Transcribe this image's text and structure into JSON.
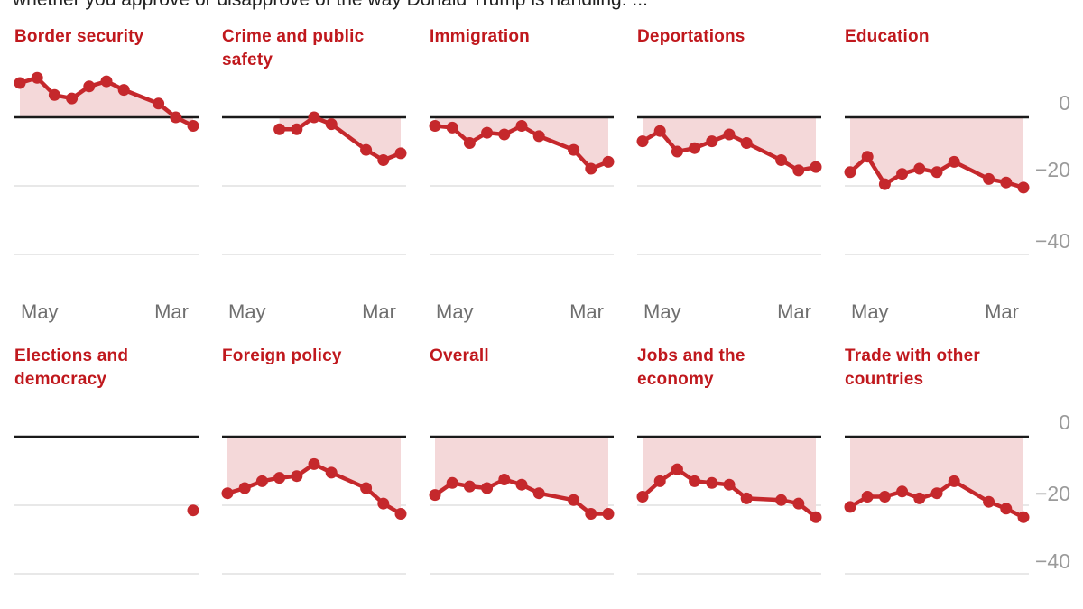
{
  "intro": {
    "text": "whether you approve or disapprove of the way Donald Trump is handling: ..."
  },
  "colors": {
    "title_red": "#c0181d",
    "line_red": "#c5282c",
    "fill_pink": "#f4d8d9",
    "zero_line": "#1a1a1a",
    "gridline": "#e0e0e0",
    "x_label_gray": "#6f6f6f",
    "y_label_gray": "#9a9a9a",
    "intro_text": "#212121"
  },
  "axis": {
    "x_tick_labels": [
      "May",
      "Mar"
    ],
    "y_tick_labels": [
      "0",
      "−20",
      "−40"
    ],
    "y_ticks": [
      0,
      -20,
      -40
    ],
    "ylim": [
      -45,
      13
    ],
    "x_slots_total": 11,
    "baseline": 0,
    "grid": "horizontal-only",
    "legend": "none"
  },
  "chart_data": [
    {
      "type": "line",
      "title": "Border security",
      "slots": [
        0,
        1,
        2,
        3,
        4,
        5,
        6,
        8,
        9,
        10
      ],
      "values": [
        10,
        11.5,
        6.5,
        5.5,
        9,
        10.5,
        8,
        4,
        0,
        -2.5
      ]
    },
    {
      "type": "line",
      "title": "Crime and public safety",
      "slots": [
        3,
        4,
        5,
        6,
        8,
        9,
        10
      ],
      "values": [
        -3.5,
        -3.5,
        0,
        -2,
        -9.5,
        -12.5,
        -10.5
      ]
    },
    {
      "type": "line",
      "title": "Immigration",
      "slots": [
        0,
        1,
        2,
        3,
        4,
        5,
        6,
        8,
        9,
        10
      ],
      "values": [
        -2.5,
        -3,
        -7.5,
        -4.5,
        -5,
        -2.5,
        -5.5,
        -9.5,
        -15,
        -13
      ]
    },
    {
      "type": "line",
      "title": "Deportations",
      "slots": [
        0,
        1,
        2,
        3,
        4,
        5,
        6,
        8,
        9,
        10
      ],
      "values": [
        -7,
        -4,
        -10,
        -9,
        -7,
        -5,
        -7.5,
        -12.5,
        -15.5,
        -14.5
      ]
    },
    {
      "type": "line",
      "title": "Education",
      "slots": [
        0,
        1,
        2,
        3,
        4,
        5,
        6,
        8,
        9,
        10
      ],
      "values": [
        -16,
        -11.5,
        -19.5,
        -16.5,
        -15,
        -16,
        -13,
        -18,
        -19,
        -20.5
      ]
    },
    {
      "type": "line",
      "title": "Elections and democracy",
      "slots": [
        10
      ],
      "values": [
        -21.5
      ]
    },
    {
      "type": "line",
      "title": "Foreign policy",
      "slots": [
        0,
        1,
        2,
        3,
        4,
        5,
        6,
        8,
        9,
        10
      ],
      "values": [
        -16.5,
        -15,
        -13,
        -12,
        -11.5,
        -8,
        -10.5,
        -15,
        -19.5,
        -22.5
      ]
    },
    {
      "type": "line",
      "title": "Overall",
      "slots": [
        0,
        1,
        2,
        3,
        4,
        5,
        6,
        8,
        9,
        10
      ],
      "values": [
        -17,
        -13.5,
        -14.5,
        -15,
        -12.5,
        -14,
        -16.5,
        -18.5,
        -22.5,
        -22.5
      ]
    },
    {
      "type": "line",
      "title": "Jobs and the economy",
      "slots": [
        0,
        1,
        2,
        3,
        4,
        5,
        6,
        8,
        9,
        10
      ],
      "values": [
        -17.5,
        -13,
        -9.5,
        -13,
        -13.5,
        -14,
        -18,
        -18.5,
        -19.5,
        -23.5
      ]
    },
    {
      "type": "line",
      "title": "Trade with other countries",
      "slots": [
        0,
        1,
        2,
        3,
        4,
        5,
        6,
        8,
        9,
        10
      ],
      "values": [
        -20.5,
        -17.5,
        -17.5,
        -16,
        -18,
        -16.5,
        -13,
        -19,
        -21,
        -23.5
      ]
    }
  ]
}
